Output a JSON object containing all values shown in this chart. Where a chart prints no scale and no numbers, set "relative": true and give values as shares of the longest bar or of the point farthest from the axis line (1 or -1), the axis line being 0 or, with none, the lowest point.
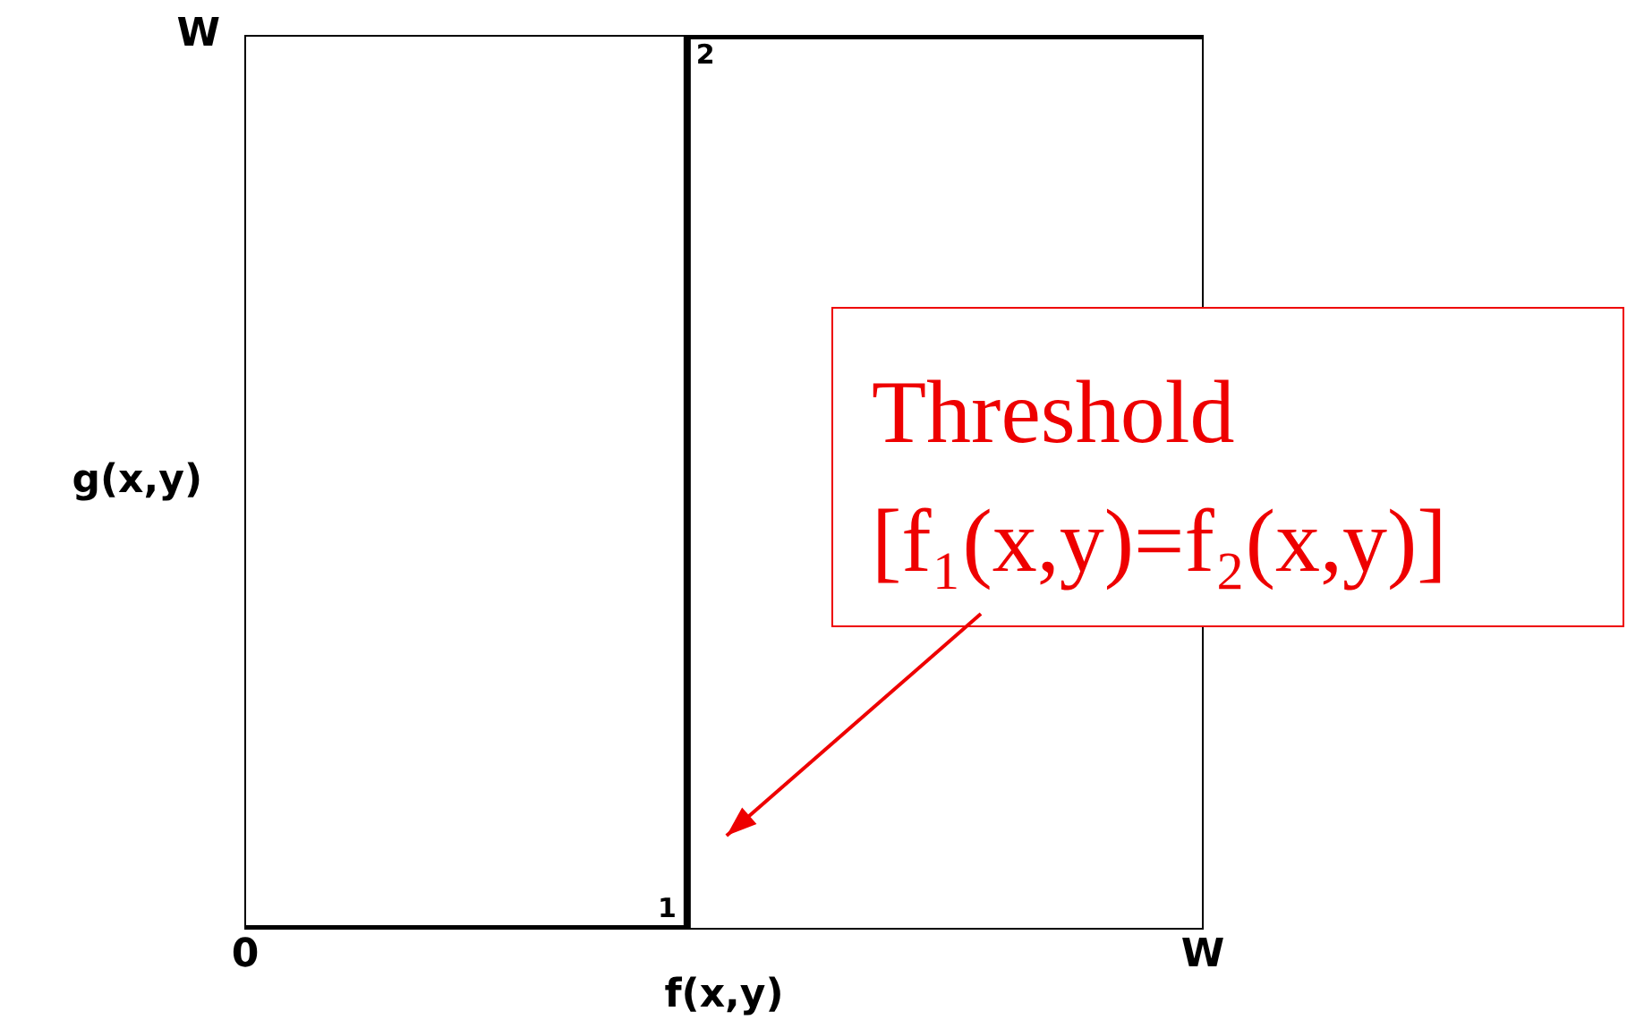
{
  "chart_data": {
    "type": "step",
    "relative": true,
    "xlabel": "f(x,y)",
    "ylabel": "g(x,y)",
    "categories": [
      "0",
      null,
      null,
      null,
      null,
      null,
      null,
      null,
      null,
      null,
      null,
      null,
      null,
      "W"
    ],
    "series": [
      {
        "color": "#000000",
        "values": [
          0,
          0,
          0,
          0,
          0,
          0,
          1,
          1,
          1,
          1,
          1,
          1,
          1,
          1
        ]
      }
    ],
    "legend": false,
    "marker": "none",
    "line_style": "solid",
    "annotations": [
      "W",
      "1",
      "2",
      "Threshold\n[f₁(x,y)=f₂(x,y)]"
    ]
  }
}
